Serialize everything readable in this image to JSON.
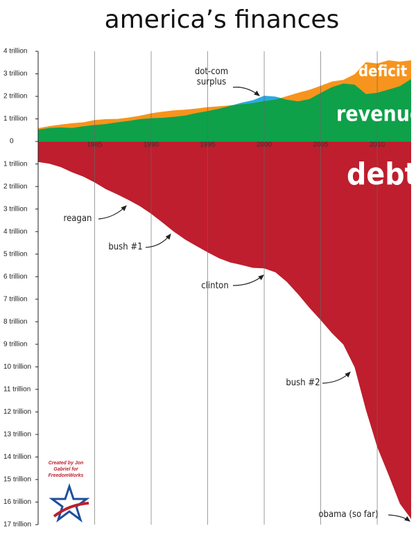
{
  "chart_data": {
    "type": "area",
    "title": "america’s finances",
    "credit": "Created by Jon Gabriel for FreedomWorks",
    "x": [
      1980,
      1981,
      1982,
      1983,
      1984,
      1985,
      1986,
      1987,
      1988,
      1989,
      1990,
      1991,
      1992,
      1993,
      1994,
      1995,
      1996,
      1997,
      1998,
      1999,
      2000,
      2001,
      2002,
      2003,
      2004,
      2005,
      2006,
      2007,
      2008,
      2009,
      2010,
      2011,
      2012,
      2013
    ],
    "xlim": [
      1980,
      2013
    ],
    "xticks": [
      1985,
      1990,
      1995,
      2000,
      2005,
      2010
    ],
    "ylim": [
      -17,
      4
    ],
    "yticks": [
      {
        "value": 4,
        "label": "4 trillion"
      },
      {
        "value": 3,
        "label": "3 trillion"
      },
      {
        "value": 2,
        "label": "2 trillion"
      },
      {
        "value": 1,
        "label": "1 trillion"
      },
      0,
      {
        "value": -1,
        "label": "1 trillion"
      },
      {
        "value": -2,
        "label": "2 trillion"
      },
      {
        "value": -3,
        "label": "3 trillion"
      },
      {
        "value": -4,
        "label": "4 trillion"
      },
      {
        "value": -5,
        "label": "5 trillion"
      },
      {
        "value": -6,
        "label": "6 trillion"
      },
      {
        "value": -7,
        "label": "7 trillion"
      },
      {
        "value": -8,
        "label": "8 trillion"
      },
      {
        "value": -9,
        "label": "9 trillion"
      },
      {
        "value": -10,
        "label": "10 trillion"
      },
      {
        "value": -11,
        "label": "11 trillion"
      },
      {
        "value": -12,
        "label": "12 trillion"
      },
      {
        "value": -13,
        "label": "13 trillion"
      },
      {
        "value": -14,
        "label": "14 trillion"
      },
      {
        "value": -15,
        "label": "15 trillion"
      },
      {
        "value": -16,
        "label": "16 trillion"
      },
      {
        "value": -17,
        "label": "17 trillion"
      }
    ],
    "grid": true,
    "surplus_color": "#29abe2",
    "series": [
      {
        "name": "revenue",
        "color": "#0fa04a",
        "values": [
          0.52,
          0.6,
          0.62,
          0.6,
          0.67,
          0.73,
          0.77,
          0.85,
          0.91,
          0.99,
          1.03,
          1.05,
          1.09,
          1.15,
          1.26,
          1.35,
          1.45,
          1.58,
          1.72,
          1.83,
          2.03,
          1.99,
          1.85,
          1.78,
          1.88,
          2.15,
          2.41,
          2.57,
          2.52,
          2.1,
          2.16,
          2.3,
          2.45,
          2.77
        ]
      },
      {
        "name": "deficit",
        "color": "#f7941d",
        "values": [
          0.59,
          0.68,
          0.75,
          0.81,
          0.85,
          0.95,
          0.99,
          1.0,
          1.06,
          1.14,
          1.25,
          1.32,
          1.38,
          1.41,
          1.46,
          1.52,
          1.56,
          1.6,
          1.65,
          1.7,
          1.79,
          1.86,
          2.01,
          2.16,
          2.29,
          2.47,
          2.66,
          2.73,
          2.98,
          3.52,
          3.46,
          3.6,
          3.54,
          3.6
        ]
      },
      {
        "name": "debt",
        "color": "#be1e2d",
        "values": [
          -0.91,
          -0.99,
          -1.14,
          -1.37,
          -1.56,
          -1.82,
          -2.12,
          -2.35,
          -2.6,
          -2.87,
          -3.21,
          -3.6,
          -4.0,
          -4.35,
          -4.64,
          -4.92,
          -5.18,
          -5.37,
          -5.48,
          -5.61,
          -5.63,
          -5.81,
          -6.23,
          -6.78,
          -7.38,
          -7.93,
          -8.51,
          -9.01,
          -10.02,
          -11.91,
          -13.56,
          -14.79,
          -16.07,
          -16.75
        ]
      }
    ],
    "annotations": [
      {
        "text": "dot-com surplus"
      },
      {
        "text": "reagan"
      },
      {
        "text": "bush #1"
      },
      {
        "text": "clinton"
      },
      {
        "text": "bush #2"
      },
      {
        "text": "obama (so far)"
      }
    ]
  }
}
